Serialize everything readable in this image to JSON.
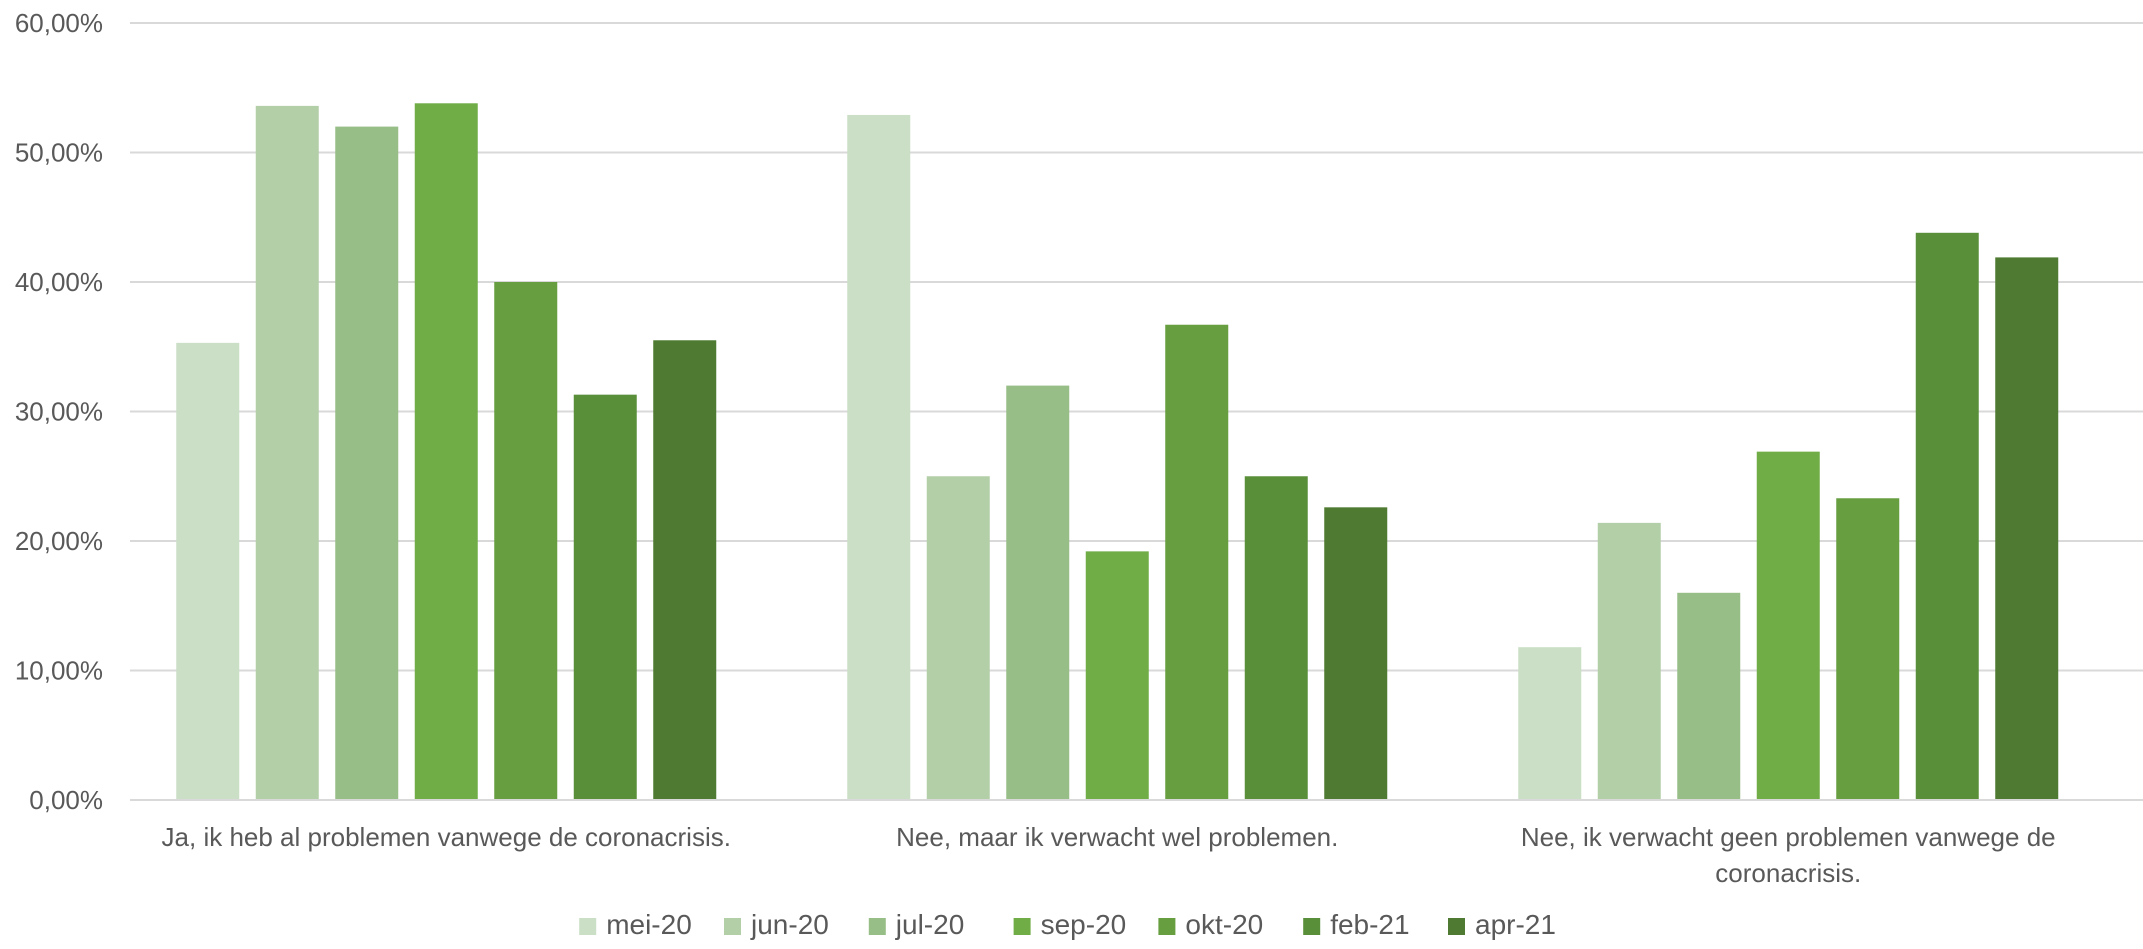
{
  "chart_data": {
    "type": "bar",
    "title": "",
    "xlabel": "",
    "ylabel": "",
    "ylim": [
      0,
      60
    ],
    "y_ticks": [
      "0,00%",
      "10,00%",
      "20,00%",
      "30,00%",
      "40,00%",
      "50,00%",
      "60,00%"
    ],
    "grid": true,
    "legend_position": "bottom",
    "categories": [
      [
        "Ja, ik heb al problemen vanwege de coronacrisis."
      ],
      [
        "Nee, maar ik verwacht wel problemen."
      ],
      [
        "Nee, ik verwacht geen problemen vanwege de",
        "coronacrisis."
      ]
    ],
    "series": [
      {
        "name": "mei-20",
        "color": "#cadfc5",
        "values": [
          35.3,
          52.9,
          11.8
        ]
      },
      {
        "name": "jun-20",
        "color": "#b3cfa7",
        "values": [
          53.6,
          25.0,
          21.4
        ]
      },
      {
        "name": "jul-20",
        "color": "#97be86",
        "values": [
          52.0,
          32.0,
          16.0
        ]
      },
      {
        "name": "sep-20",
        "color": "#70ad47",
        "values": [
          53.8,
          19.2,
          26.9
        ]
      },
      {
        "name": "okt-20",
        "color": "#669e40",
        "values": [
          40.0,
          36.7,
          23.3
        ]
      },
      {
        "name": "feb-21",
        "color": "#5a8f3a",
        "values": [
          31.3,
          25.0,
          43.8
        ]
      },
      {
        "name": "apr-21",
        "color": "#4e7b31",
        "values": [
          35.5,
          22.6,
          41.9
        ]
      }
    ]
  }
}
